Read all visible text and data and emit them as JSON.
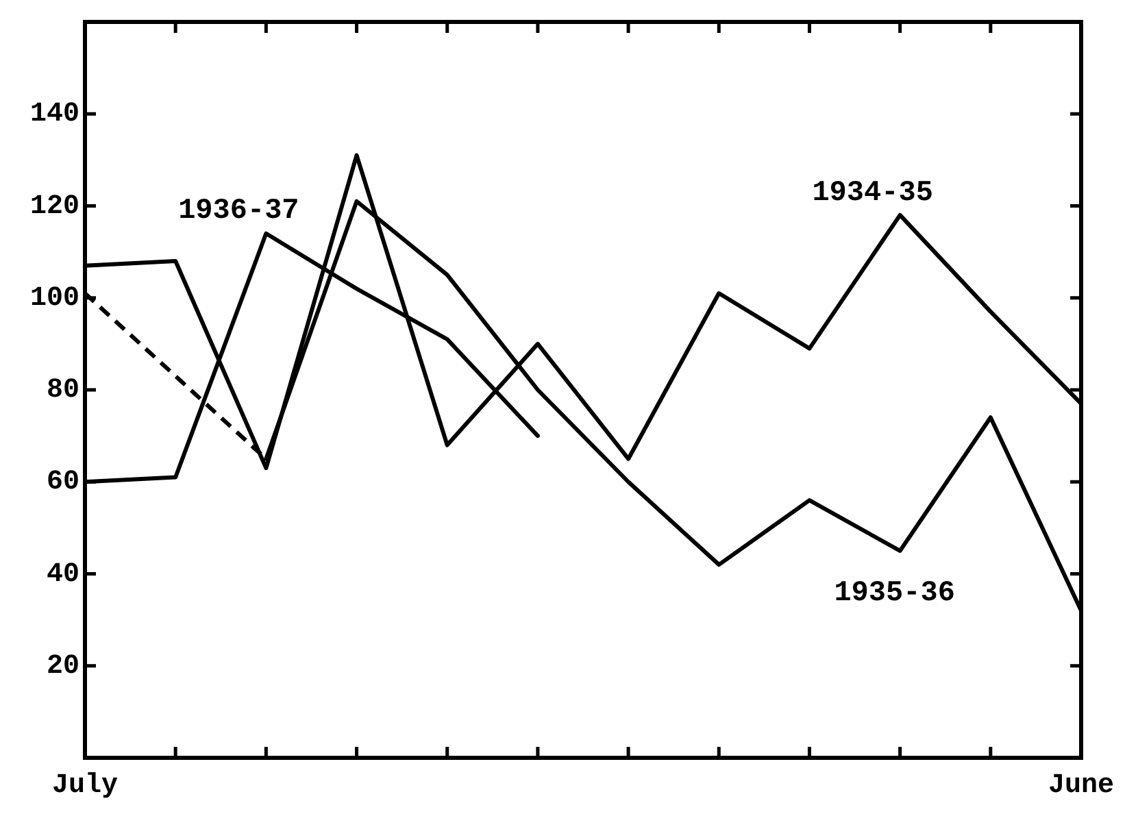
{
  "chart_data": {
    "type": "line",
    "categories": [
      "July",
      null,
      null,
      null,
      null,
      null,
      null,
      null,
      null,
      null,
      null,
      "June"
    ],
    "series": [
      {
        "name": "1934-35",
        "color": "#000000",
        "values": [
          107,
          108,
          63,
          131,
          68,
          90,
          65,
          101,
          89,
          118,
          97,
          77
        ]
      },
      {
        "name": "1935-36",
        "color": "#000000",
        "values": [
          101,
          null,
          65,
          121,
          105,
          80,
          60,
          42,
          56,
          45,
          74,
          32
        ]
      },
      {
        "name": "1936-37",
        "color": "#000000",
        "values": [
          60,
          61,
          114,
          102,
          91,
          70,
          null,
          null,
          null,
          null,
          null,
          null
        ]
      }
    ],
    "ylim": [
      0,
      160
    ],
    "yticks": [
      20,
      40,
      60,
      80,
      100,
      120,
      140
    ],
    "grid": false,
    "legend": false,
    "marker": "none",
    "line_style": "solid"
  }
}
